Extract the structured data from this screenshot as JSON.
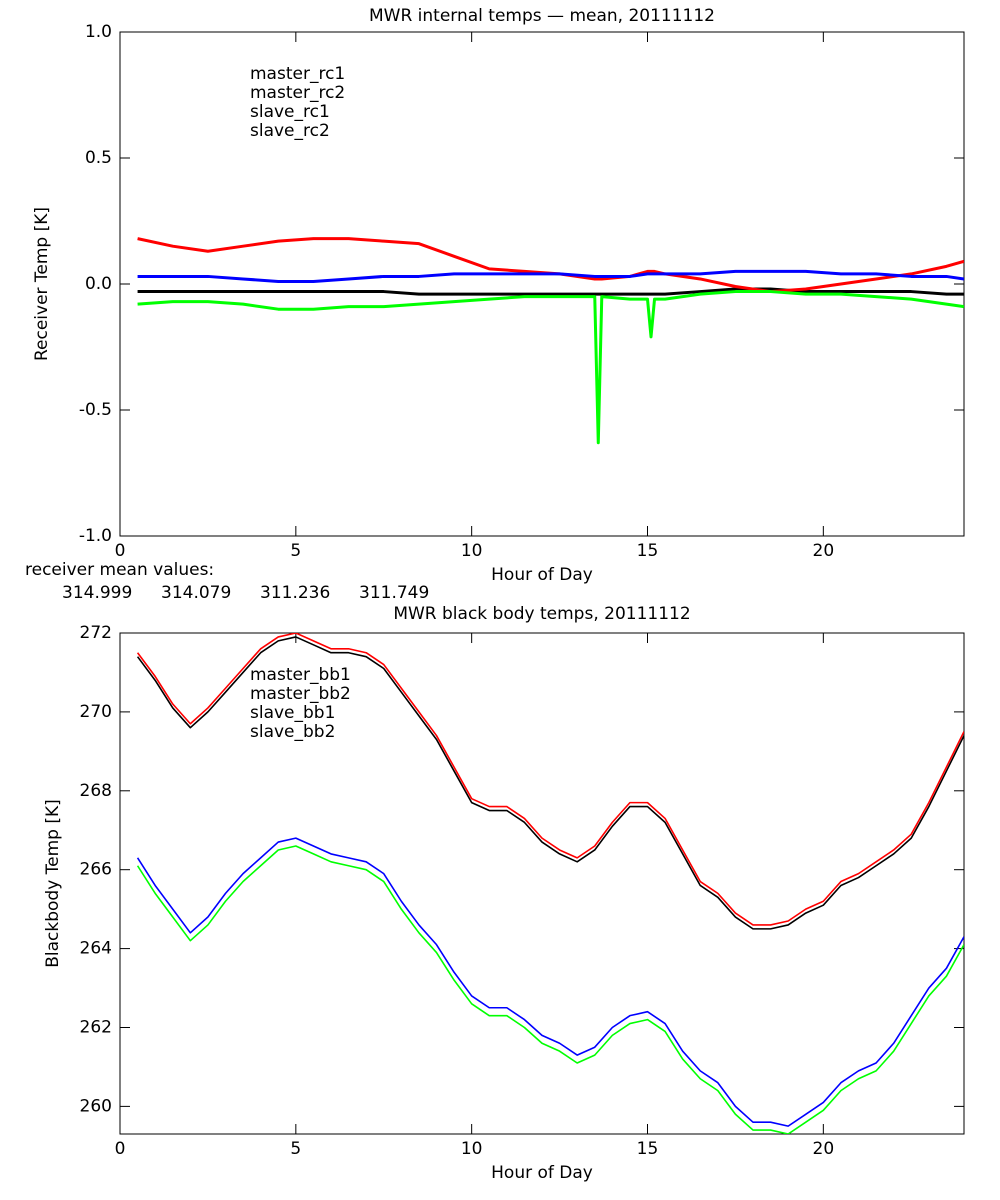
{
  "chart_data": [
    {
      "type": "line",
      "title": "MWR internal temps — mean, 20111112",
      "xlabel": "Hour of Day",
      "ylabel": "Receiver Temp [K]",
      "xlim": [
        0,
        24
      ],
      "ylim": [
        -1,
        1
      ],
      "xticks": [
        0,
        5,
        10,
        15,
        20
      ],
      "yticks": [
        {
          "value": -1,
          "label": "-1.0"
        },
        -0.5,
        {
          "value": 0,
          "label": "0.0"
        },
        0.5,
        {
          "value": 1,
          "label": "1.0"
        }
      ],
      "legend": "upper-left",
      "x": [
        0.5,
        1.5,
        2.5,
        3.5,
        4.5,
        5.5,
        6.5,
        7.5,
        8.5,
        9.5,
        10.5,
        11.5,
        12.5,
        13.5,
        13.6,
        13.7,
        14.5,
        15.0,
        15.1,
        15.2,
        15.5,
        16.5,
        17.5,
        18.5,
        19.5,
        20.5,
        21.5,
        22.5,
        23.5,
        24
      ],
      "series": [
        {
          "name": "master_rc1",
          "color": "#000000",
          "values": [
            -0.03,
            -0.03,
            -0.03,
            -0.03,
            -0.03,
            -0.03,
            -0.03,
            -0.03,
            -0.04,
            -0.04,
            -0.04,
            -0.04,
            -0.04,
            -0.04,
            -0.04,
            -0.04,
            -0.04,
            -0.04,
            -0.04,
            -0.04,
            -0.04,
            -0.03,
            -0.02,
            -0.02,
            -0.03,
            -0.03,
            -0.03,
            -0.03,
            -0.04,
            -0.04
          ]
        },
        {
          "name": "master_rc2",
          "color": "#ff0000",
          "values": [
            0.18,
            0.15,
            0.13,
            0.15,
            0.17,
            0.18,
            0.18,
            0.17,
            0.16,
            0.11,
            0.06,
            0.05,
            0.04,
            0.02,
            0.02,
            0.02,
            0.03,
            0.05,
            0.05,
            0.05,
            0.04,
            0.02,
            -0.01,
            -0.03,
            -0.02,
            0.0,
            0.02,
            0.04,
            0.07,
            0.09
          ]
        },
        {
          "name": "slave_rc1",
          "color": "#0000ff",
          "values": [
            0.03,
            0.03,
            0.03,
            0.02,
            0.01,
            0.01,
            0.02,
            0.03,
            0.03,
            0.04,
            0.04,
            0.04,
            0.04,
            0.03,
            0.03,
            0.03,
            0.03,
            0.04,
            0.04,
            0.04,
            0.04,
            0.04,
            0.05,
            0.05,
            0.05,
            0.04,
            0.04,
            0.03,
            0.03,
            0.02
          ]
        },
        {
          "name": "slave_rc2",
          "color": "#00ff00",
          "values": [
            -0.08,
            -0.07,
            -0.07,
            -0.08,
            -0.1,
            -0.1,
            -0.09,
            -0.09,
            -0.08,
            -0.07,
            -0.06,
            -0.05,
            -0.05,
            -0.05,
            -0.63,
            -0.05,
            -0.06,
            -0.06,
            -0.21,
            -0.06,
            -0.06,
            -0.04,
            -0.03,
            -0.03,
            -0.04,
            -0.04,
            -0.05,
            -0.06,
            -0.08,
            -0.09
          ]
        }
      ],
      "annotation": "receiver mean values:",
      "mean_values": [
        314.999,
        314.079,
        311.236,
        311.749
      ]
    },
    {
      "type": "line",
      "title": "MWR black body temps, 20111112",
      "xlabel": "Hour of Day",
      "ylabel": "Blackbody Temp [K]",
      "xlim": [
        0,
        24
      ],
      "ylim": [
        259.3,
        272
      ],
      "xticks": [
        0,
        5,
        10,
        15,
        20
      ],
      "yticks": [
        260,
        262,
        264,
        266,
        268,
        270,
        272
      ],
      "legend": "upper-left",
      "x": [
        0.5,
        1,
        1.5,
        2,
        2.5,
        3,
        3.5,
        4,
        4.5,
        5,
        5.5,
        6,
        6.5,
        7,
        7.5,
        8,
        8.5,
        9,
        9.5,
        10,
        10.5,
        11,
        11.5,
        12,
        12.5,
        13,
        13.5,
        14,
        14.5,
        15,
        15.5,
        16,
        16.5,
        17,
        17.5,
        18,
        18.5,
        19,
        19.5,
        20,
        20.5,
        21,
        21.5,
        22,
        22.5,
        23,
        23.5,
        24
      ],
      "series": [
        {
          "name": "master_bb1",
          "color": "#000000",
          "values": [
            271.4,
            270.8,
            270.1,
            269.6,
            270.0,
            270.5,
            271.0,
            271.5,
            271.8,
            271.9,
            271.7,
            271.5,
            271.5,
            271.4,
            271.1,
            270.5,
            269.9,
            269.3,
            268.5,
            267.7,
            267.5,
            267.5,
            267.2,
            266.7,
            266.4,
            266.2,
            266.5,
            267.1,
            267.6,
            267.6,
            267.2,
            266.4,
            265.6,
            265.3,
            264.8,
            264.5,
            264.5,
            264.6,
            264.9,
            265.1,
            265.6,
            265.8,
            266.1,
            266.4,
            266.8,
            267.6,
            268.5,
            269.4
          ]
        },
        {
          "name": "master_bb2",
          "color": "#ff0000",
          "values": [
            271.5,
            270.9,
            270.2,
            269.7,
            270.1,
            270.6,
            271.1,
            271.6,
            271.9,
            272.0,
            271.8,
            271.6,
            271.6,
            271.5,
            271.2,
            270.6,
            270.0,
            269.4,
            268.6,
            267.8,
            267.6,
            267.6,
            267.3,
            266.8,
            266.5,
            266.3,
            266.6,
            267.2,
            267.7,
            267.7,
            267.3,
            266.5,
            265.7,
            265.4,
            264.9,
            264.6,
            264.6,
            264.7,
            265.0,
            265.2,
            265.7,
            265.9,
            266.2,
            266.5,
            266.9,
            267.7,
            268.6,
            269.5
          ]
        },
        {
          "name": "slave_bb1",
          "color": "#0000ff",
          "values": [
            266.3,
            265.6,
            265.0,
            264.4,
            264.8,
            265.4,
            265.9,
            266.3,
            266.7,
            266.8,
            266.6,
            266.4,
            266.3,
            266.2,
            265.9,
            265.2,
            264.6,
            264.1,
            263.4,
            262.8,
            262.5,
            262.5,
            262.2,
            261.8,
            261.6,
            261.3,
            261.5,
            262.0,
            262.3,
            262.4,
            262.1,
            261.4,
            260.9,
            260.6,
            260.0,
            259.6,
            259.6,
            259.5,
            259.8,
            260.1,
            260.6,
            260.9,
            261.1,
            261.6,
            262.3,
            263.0,
            263.5,
            264.3
          ]
        },
        {
          "name": "slave_bb2",
          "color": "#00ff00",
          "values": [
            266.1,
            265.4,
            264.8,
            264.2,
            264.6,
            265.2,
            265.7,
            266.1,
            266.5,
            266.6,
            266.4,
            266.2,
            266.1,
            266.0,
            265.7,
            265.0,
            264.4,
            263.9,
            263.2,
            262.6,
            262.3,
            262.3,
            262.0,
            261.6,
            261.4,
            261.1,
            261.3,
            261.8,
            262.1,
            262.2,
            261.9,
            261.2,
            260.7,
            260.4,
            259.8,
            259.4,
            259.4,
            259.3,
            259.6,
            259.9,
            260.4,
            260.7,
            260.9,
            261.4,
            262.1,
            262.8,
            263.3,
            264.1
          ]
        }
      ]
    }
  ]
}
